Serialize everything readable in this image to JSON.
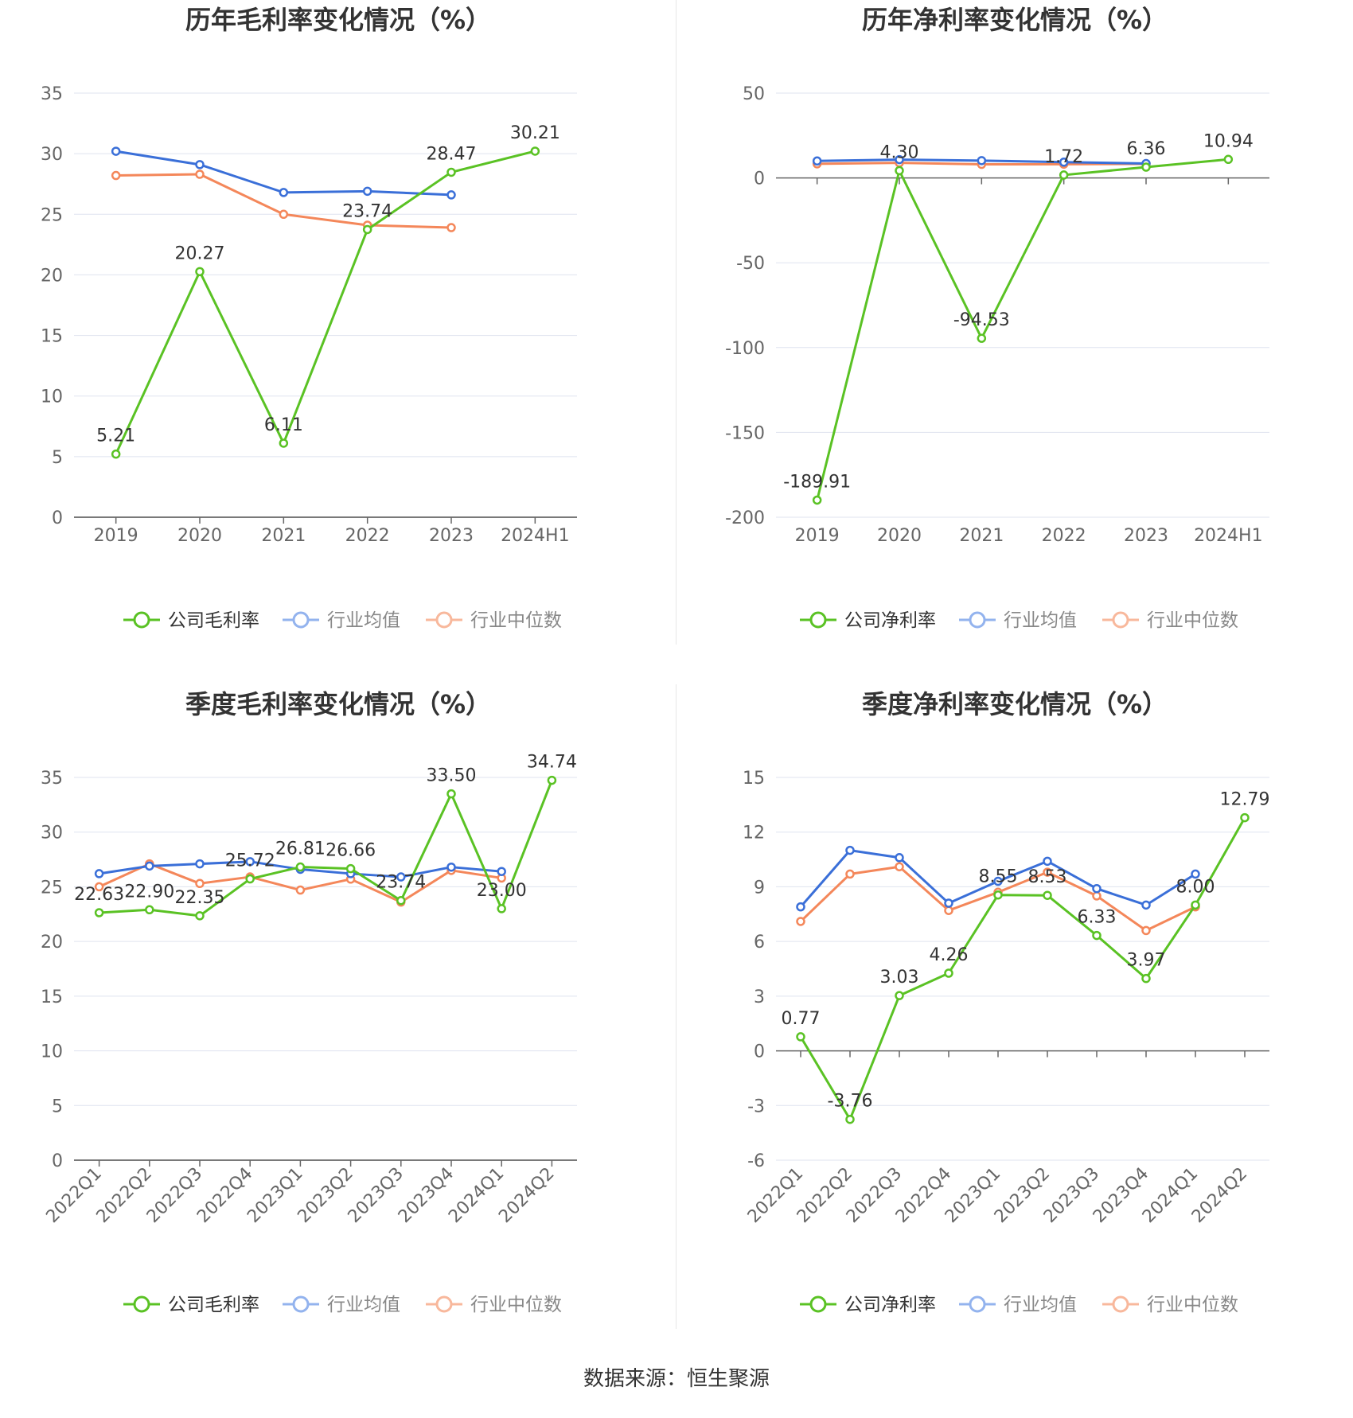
{
  "source_label": "数据来源：恒生聚源",
  "colors": {
    "company": "#5ac224",
    "avg": "#3a6fd8",
    "median": "#f4875a"
  },
  "chart_data": [
    {
      "type": "line",
      "title": "历年毛利率变化情况（%）",
      "categories": [
        "2019",
        "2020",
        "2021",
        "2022",
        "2023",
        "2024H1"
      ],
      "yticks": [
        "35",
        "30",
        "25",
        "20",
        "15",
        "10",
        "5",
        "0"
      ],
      "ylim": [
        0,
        35
      ],
      "legend": [
        "公司毛利率",
        "行业均值",
        "行业中位数"
      ],
      "series": [
        {
          "name": "公司毛利率",
          "values": [
            5.21,
            20.27,
            6.11,
            23.74,
            28.47,
            30.21
          ],
          "labels": [
            "5.21",
            "20.27",
            "6.11",
            "23.74",
            "28.47",
            "30.21"
          ]
        },
        {
          "name": "行业均值",
          "values": [
            30.2,
            29.1,
            26.8,
            26.9,
            26.6,
            null
          ]
        },
        {
          "name": "行业中位数",
          "values": [
            28.2,
            28.3,
            25.0,
            24.1,
            23.9,
            null
          ]
        }
      ]
    },
    {
      "type": "line",
      "title": "历年净利率变化情况（%）",
      "categories": [
        "2019",
        "2020",
        "2021",
        "2022",
        "2023",
        "2024H1"
      ],
      "yticks": [
        "50",
        "0",
        "-50",
        "-100",
        "-150",
        "-200"
      ],
      "ylim": [
        -200,
        50
      ],
      "legend": [
        "公司净利率",
        "行业均值",
        "行业中位数"
      ],
      "series": [
        {
          "name": "公司净利率",
          "values": [
            -189.91,
            4.3,
            -94.53,
            1.72,
            6.36,
            10.94
          ],
          "labels": [
            "-189.91",
            "4.30",
            "-94.53",
            "1.72",
            "6.36",
            "10.94"
          ]
        },
        {
          "name": "行业均值",
          "values": [
            10.0,
            10.8,
            10.2,
            9.3,
            8.5,
            null
          ]
        },
        {
          "name": "行业中位数",
          "values": [
            8.3,
            8.9,
            8.0,
            8.1,
            8.3,
            null
          ]
        }
      ]
    },
    {
      "type": "line",
      "title": "季度毛利率变化情况（%）",
      "categories": [
        "2022Q1",
        "2022Q2",
        "2022Q3",
        "2022Q4",
        "2023Q1",
        "2023Q2",
        "2023Q3",
        "2023Q4",
        "2024Q1",
        "2024Q2"
      ],
      "yticks": [
        "35",
        "30",
        "25",
        "20",
        "15",
        "10",
        "5",
        "0"
      ],
      "ylim": [
        0,
        35
      ],
      "legend": [
        "公司毛利率",
        "行业均值",
        "行业中位数"
      ],
      "series": [
        {
          "name": "公司毛利率",
          "values": [
            22.63,
            22.9,
            22.35,
            25.72,
            26.81,
            26.66,
            23.74,
            33.5,
            23.0,
            34.74
          ],
          "labels": [
            "22.63",
            "22.90",
            "22.35",
            "25.72",
            "26.81",
            "26.66",
            "23.74",
            "33.50",
            "23.00",
            "34.74"
          ]
        },
        {
          "name": "行业均值",
          "values": [
            26.2,
            26.9,
            27.1,
            27.3,
            26.6,
            26.2,
            25.9,
            26.8,
            26.4,
            null
          ]
        },
        {
          "name": "行业中位数",
          "values": [
            25.0,
            27.1,
            25.3,
            25.9,
            24.7,
            25.7,
            23.6,
            26.5,
            25.8,
            null
          ]
        }
      ]
    },
    {
      "type": "line",
      "title": "季度净利率变化情况（%）",
      "categories": [
        "2022Q1",
        "2022Q2",
        "2022Q3",
        "2022Q4",
        "2023Q1",
        "2023Q2",
        "2023Q3",
        "2023Q4",
        "2024Q1",
        "2024Q2"
      ],
      "yticks": [
        "15",
        "12",
        "9",
        "6",
        "3",
        "0",
        "-3",
        "-6"
      ],
      "ylim": [
        -6,
        15
      ],
      "legend": [
        "公司净利率",
        "行业均值",
        "行业中位数"
      ],
      "series": [
        {
          "name": "公司净利率",
          "values": [
            0.77,
            -3.76,
            3.03,
            4.26,
            8.55,
            8.53,
            6.33,
            3.97,
            8.0,
            12.79
          ],
          "labels": [
            "0.77",
            "-3.76",
            "3.03",
            "4.26",
            "8.55",
            "8.53",
            "6.33",
            "3.97",
            "8.00",
            "12.79"
          ]
        },
        {
          "name": "行业均值",
          "values": [
            7.9,
            11.0,
            10.6,
            8.1,
            9.3,
            10.4,
            8.9,
            8.0,
            9.7,
            null
          ]
        },
        {
          "name": "行业中位数",
          "values": [
            7.1,
            9.7,
            10.1,
            7.7,
            8.7,
            9.8,
            8.5,
            6.6,
            7.9,
            null
          ]
        }
      ]
    }
  ]
}
